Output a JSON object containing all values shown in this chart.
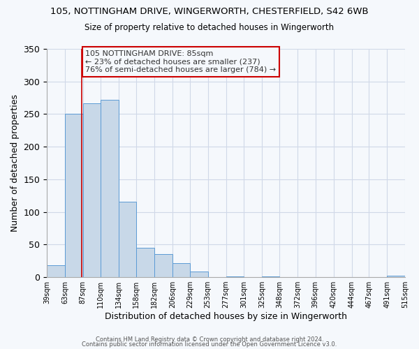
{
  "title1": "105, NOTTINGHAM DRIVE, WINGERWORTH, CHESTERFIELD, S42 6WB",
  "title2": "Size of property relative to detached houses in Wingerworth",
  "xlabel": "Distribution of detached houses by size in Wingerworth",
  "ylabel": "Number of detached properties",
  "bar_edges": [
    39,
    63,
    87,
    110,
    134,
    158,
    182,
    206,
    229,
    253,
    277,
    301,
    325,
    348,
    372,
    396,
    420,
    444,
    467,
    491,
    515
  ],
  "bar_heights": [
    18,
    250,
    267,
    272,
    116,
    45,
    35,
    21,
    9,
    0,
    1,
    0,
    1,
    0,
    0,
    0,
    0,
    0,
    0,
    2
  ],
  "bar_color": "#c8d8e8",
  "bar_edge_color": "#5b9bd5",
  "vline_x": 85,
  "vline_color": "#cc0000",
  "annotation_text": "105 NOTTINGHAM DRIVE: 85sqm\n← 23% of detached houses are smaller (237)\n76% of semi-detached houses are larger (784) →",
  "annotation_box_edge": "#cc0000",
  "ylim": [
    0,
    350
  ],
  "yticks": [
    0,
    50,
    100,
    150,
    200,
    250,
    300,
    350
  ],
  "tick_labels": [
    "39sqm",
    "63sqm",
    "87sqm",
    "110sqm",
    "134sqm",
    "158sqm",
    "182sqm",
    "206sqm",
    "229sqm",
    "253sqm",
    "277sqm",
    "301sqm",
    "325sqm",
    "348sqm",
    "372sqm",
    "396sqm",
    "420sqm",
    "444sqm",
    "467sqm",
    "491sqm",
    "515sqm"
  ],
  "footer1": "Contains HM Land Registry data © Crown copyright and database right 2024.",
  "footer2": "Contains public sector information licensed under the Open Government Licence v3.0.",
  "bg_color": "#f5f8fc",
  "grid_color": "#d0d8e8"
}
